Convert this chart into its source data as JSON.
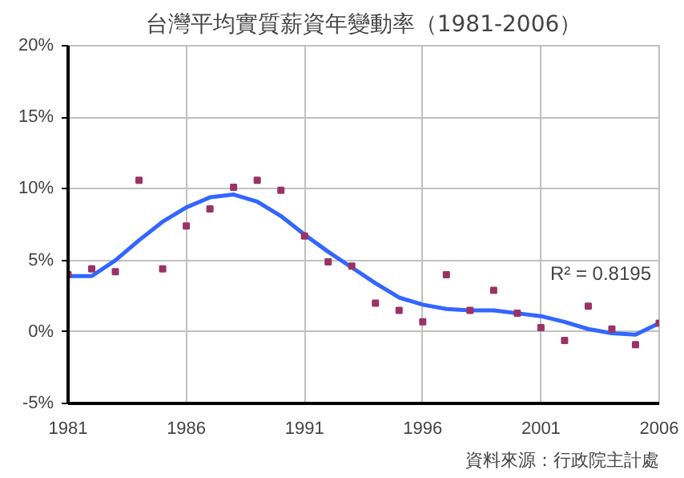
{
  "chart_data": {
    "type": "scatter",
    "title": "台灣平均實質薪資年變動率（1981-2006）",
    "x": [
      1981,
      1982,
      1983,
      1984,
      1985,
      1986,
      1987,
      1988,
      1989,
      1990,
      1991,
      1992,
      1993,
      1994,
      1995,
      1996,
      1997,
      1998,
      1999,
      2000,
      2001,
      2002,
      2003,
      2004,
      2005,
      2006
    ],
    "series": [
      {
        "color": "#993366",
        "marker": "square",
        "values": [
          4.0,
          4.4,
          4.2,
          10.6,
          4.4,
          7.4,
          8.6,
          10.1,
          10.6,
          9.9,
          6.7,
          4.9,
          4.6,
          2.0,
          1.5,
          0.7,
          4.0,
          1.5,
          2.9,
          1.3,
          0.3,
          -0.6,
          1.8,
          0.2,
          -0.9,
          0.6
        ]
      },
      {
        "type": "line",
        "color": "#3366ff",
        "values": [
          3.9,
          3.9,
          5.0,
          6.4,
          7.7,
          8.7,
          9.4,
          9.6,
          9.1,
          8.1,
          6.8,
          5.6,
          4.5,
          3.4,
          2.4,
          1.9,
          1.6,
          1.5,
          1.5,
          1.3,
          1.1,
          0.7,
          0.2,
          -0.1,
          -0.2,
          0.6
        ]
      }
    ],
    "xlim": [
      1981,
      2006
    ],
    "xticks": [
      1981,
      1986,
      1991,
      1996,
      2001,
      2006
    ],
    "ylim": [
      -5,
      20
    ],
    "yticks": [
      {
        "value": -5,
        "label": "-5%"
      },
      {
        "value": 0,
        "label": "0%"
      },
      {
        "value": 5,
        "label": "5%"
      },
      {
        "value": 10,
        "label": "10%"
      },
      {
        "value": 15,
        "label": "15%"
      },
      {
        "value": 20,
        "label": "20%"
      }
    ],
    "grid": true,
    "annotations": [
      "R² = 0.8195",
      "資料來源：行政院主計處"
    ]
  }
}
